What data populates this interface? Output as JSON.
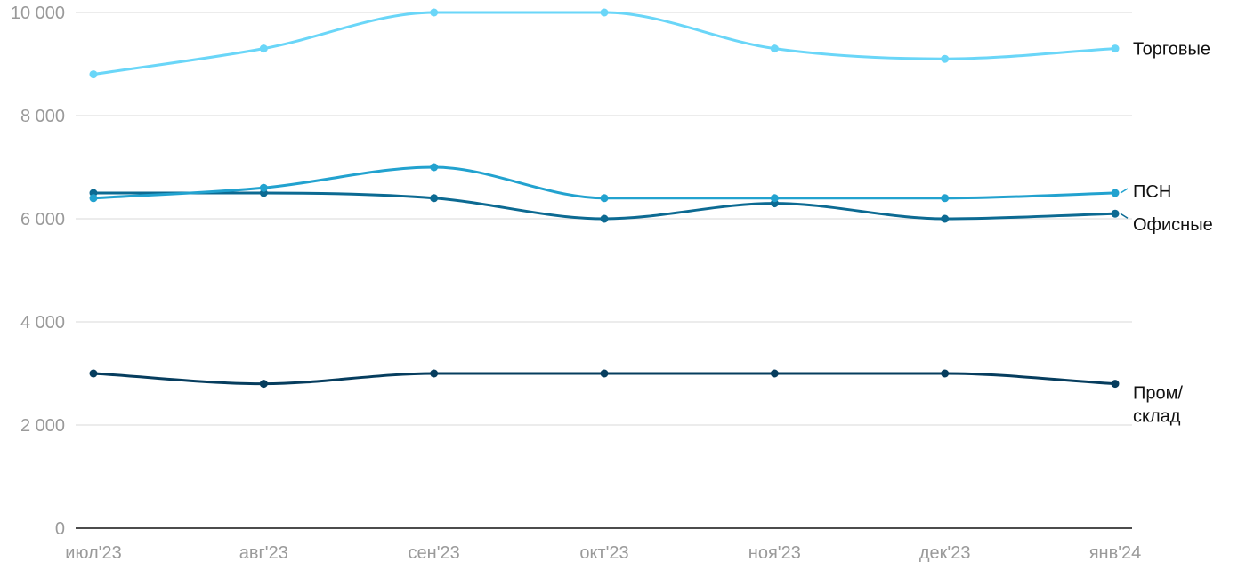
{
  "chart_data": {
    "type": "line",
    "title": "",
    "xlabel": "",
    "ylabel": "",
    "categories": [
      "июл'23",
      "авг'23",
      "сен'23",
      "окт'23",
      "ноя'23",
      "дек'23",
      "янв'24"
    ],
    "ylim": [
      0,
      10000
    ],
    "yticks": [
      0,
      2000,
      4000,
      6000,
      8000,
      10000
    ],
    "ytick_labels": [
      "0",
      "2 000",
      "4 000",
      "6 000",
      "8 000",
      "10 000"
    ],
    "grid": true,
    "legend": "inline-right",
    "series": [
      {
        "name": "Торговые",
        "label_lines": [
          "Торговые"
        ],
        "color": "#6ad6f8",
        "values": [
          8800,
          9300,
          10000,
          10000,
          9300,
          9100,
          9300
        ]
      },
      {
        "name": "ПСН",
        "label_lines": [
          "ПСН"
        ],
        "color": "#22a2cf",
        "values": [
          6400,
          6600,
          7000,
          6400,
          6400,
          6400,
          6500
        ]
      },
      {
        "name": "Офисные",
        "label_lines": [
          "Офисные"
        ],
        "color": "#0c6a92",
        "values": [
          6500,
          6500,
          6400,
          6000,
          6300,
          6000,
          6100
        ]
      },
      {
        "name": "Пром/склад",
        "label_lines": [
          "Пром/",
          "склад"
        ],
        "color": "#063d5e",
        "values": [
          3000,
          2800,
          3000,
          3000,
          3000,
          3000,
          2800
        ]
      }
    ]
  }
}
